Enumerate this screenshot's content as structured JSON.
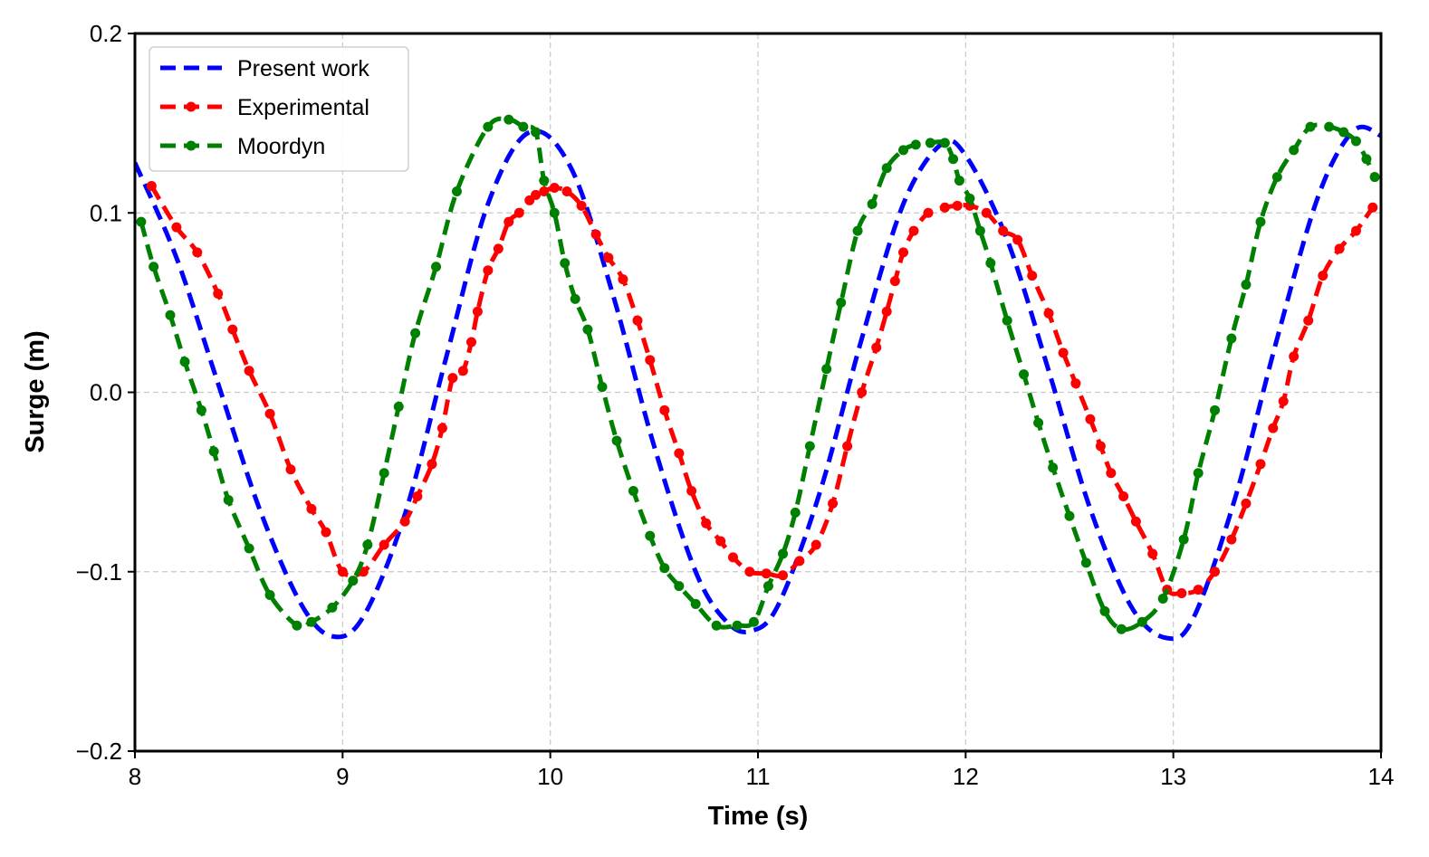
{
  "chart_data": {
    "type": "line",
    "title": "",
    "xlabel": "Time (s)",
    "ylabel": "Surge (m)",
    "xlim": [
      8,
      14
    ],
    "ylim": [
      -0.2,
      0.2
    ],
    "xticks": [
      8,
      9,
      10,
      11,
      12,
      13,
      14
    ],
    "xtick_labels": [
      "8",
      "9",
      "10",
      "11",
      "12",
      "13",
      "14"
    ],
    "yticks": [
      -0.2,
      -0.1,
      0.0,
      0.1,
      0.2
    ],
    "ytick_labels": [
      "−0.2",
      "−0.1",
      "0.0",
      "0.1",
      "0.2"
    ],
    "grid": true,
    "legend_position": "top-left",
    "series": [
      {
        "name": "Present work",
        "color": "#0000ff",
        "style": "dashed",
        "markers": false,
        "x": [
          8.0,
          8.2,
          8.4,
          8.6,
          8.8,
          8.95,
          9.1,
          9.3,
          9.5,
          9.7,
          9.9,
          10.1,
          10.3,
          10.5,
          10.7,
          10.85,
          10.97,
          11.1,
          11.3,
          11.5,
          11.7,
          11.88,
          12.0,
          12.2,
          12.4,
          12.6,
          12.8,
          12.97,
          13.1,
          13.3,
          13.5,
          13.7,
          13.87,
          14.0
        ],
        "y": [
          0.128,
          0.075,
          0.005,
          -0.065,
          -0.118,
          -0.136,
          -0.125,
          -0.068,
          0.02,
          0.105,
          0.145,
          0.125,
          0.055,
          -0.03,
          -0.1,
          -0.128,
          -0.133,
          -0.118,
          -0.055,
          0.03,
          0.105,
          0.138,
          0.132,
          0.085,
          0.012,
          -0.065,
          -0.12,
          -0.137,
          -0.125,
          -0.058,
          0.03,
          0.11,
          0.146,
          0.143
        ]
      },
      {
        "name": "Experimental",
        "color": "#ff0000",
        "style": "dashed",
        "markers": true,
        "x": [
          8.08,
          8.2,
          8.3,
          8.4,
          8.47,
          8.55,
          8.65,
          8.75,
          8.85,
          8.92,
          9.0,
          9.1,
          9.2,
          9.3,
          9.36,
          9.43,
          9.48,
          9.53,
          9.58,
          9.62,
          9.65,
          9.7,
          9.75,
          9.8,
          9.85,
          9.9,
          9.93,
          9.97,
          10.02,
          10.08,
          10.15,
          10.22,
          10.28,
          10.35,
          10.42,
          10.48,
          10.55,
          10.62,
          10.68,
          10.75,
          10.82,
          10.88,
          10.96,
          11.04,
          11.12,
          11.2,
          11.28,
          11.36,
          11.43,
          11.5,
          11.57,
          11.62,
          11.66,
          11.7,
          11.75,
          11.82,
          11.9,
          11.96,
          12.02,
          12.1,
          12.18,
          12.25,
          12.32,
          12.4,
          12.47,
          12.53,
          12.6,
          12.65,
          12.7,
          12.76,
          12.82,
          12.9,
          12.97,
          13.04,
          13.12,
          13.2,
          13.28,
          13.35,
          13.42,
          13.48,
          13.53,
          13.58,
          13.65,
          13.72,
          13.8,
          13.88,
          13.96
        ],
        "y": [
          0.115,
          0.092,
          0.078,
          0.055,
          0.035,
          0.012,
          -0.012,
          -0.043,
          -0.065,
          -0.078,
          -0.1,
          -0.1,
          -0.085,
          -0.072,
          -0.058,
          -0.04,
          -0.02,
          0.008,
          0.012,
          0.028,
          0.045,
          0.068,
          0.08,
          0.095,
          0.1,
          0.107,
          0.11,
          0.112,
          0.114,
          0.112,
          0.104,
          0.088,
          0.075,
          0.063,
          0.04,
          0.018,
          -0.01,
          -0.034,
          -0.055,
          -0.073,
          -0.083,
          -0.092,
          -0.1,
          -0.101,
          -0.102,
          -0.094,
          -0.085,
          -0.062,
          -0.03,
          0.0,
          0.025,
          0.045,
          0.062,
          0.078,
          0.09,
          0.1,
          0.103,
          0.104,
          0.104,
          0.1,
          0.09,
          0.085,
          0.065,
          0.044,
          0.022,
          0.005,
          -0.015,
          -0.03,
          -0.045,
          -0.058,
          -0.072,
          -0.09,
          -0.11,
          -0.112,
          -0.11,
          -0.1,
          -0.082,
          -0.062,
          -0.04,
          -0.02,
          -0.005,
          0.02,
          0.04,
          0.065,
          0.08,
          0.09,
          0.103
        ]
      },
      {
        "name": "Moordyn",
        "color": "#008000",
        "style": "dashed",
        "markers": true,
        "x": [
          8.03,
          8.09,
          8.17,
          8.24,
          8.32,
          8.38,
          8.45,
          8.55,
          8.65,
          8.78,
          8.85,
          8.95,
          9.05,
          9.12,
          9.2,
          9.27,
          9.35,
          9.45,
          9.55,
          9.7,
          9.8,
          9.87,
          9.93,
          9.97,
          10.02,
          10.07,
          10.12,
          10.18,
          10.25,
          10.32,
          10.4,
          10.48,
          10.55,
          10.62,
          10.7,
          10.8,
          10.9,
          10.98,
          11.05,
          11.12,
          11.18,
          11.25,
          11.33,
          11.4,
          11.48,
          11.55,
          11.62,
          11.7,
          11.76,
          11.83,
          11.9,
          11.94,
          11.97,
          12.02,
          12.07,
          12.12,
          12.2,
          12.28,
          12.35,
          12.42,
          12.5,
          12.58,
          12.67,
          12.75,
          12.85,
          12.95,
          13.05,
          13.12,
          13.2,
          13.28,
          13.35,
          13.42,
          13.5,
          13.58,
          13.66,
          13.75,
          13.82,
          13.88,
          13.93,
          13.97
        ],
        "y": [
          0.095,
          0.07,
          0.043,
          0.017,
          -0.01,
          -0.033,
          -0.06,
          -0.087,
          -0.113,
          -0.13,
          -0.128,
          -0.12,
          -0.105,
          -0.085,
          -0.045,
          -0.008,
          0.033,
          0.07,
          0.112,
          0.148,
          0.152,
          0.148,
          0.145,
          0.118,
          0.1,
          0.072,
          0.052,
          0.035,
          0.003,
          -0.027,
          -0.055,
          -0.08,
          -0.098,
          -0.108,
          -0.118,
          -0.13,
          -0.13,
          -0.128,
          -0.108,
          -0.09,
          -0.067,
          -0.03,
          0.013,
          0.05,
          0.09,
          0.105,
          0.125,
          0.135,
          0.138,
          0.139,
          0.139,
          0.13,
          0.118,
          0.108,
          0.09,
          0.072,
          0.04,
          0.01,
          -0.017,
          -0.042,
          -0.069,
          -0.095,
          -0.122,
          -0.132,
          -0.128,
          -0.115,
          -0.082,
          -0.045,
          -0.01,
          0.03,
          0.06,
          0.095,
          0.12,
          0.135,
          0.148,
          0.148,
          0.145,
          0.14,
          0.13,
          0.12
        ]
      }
    ]
  }
}
